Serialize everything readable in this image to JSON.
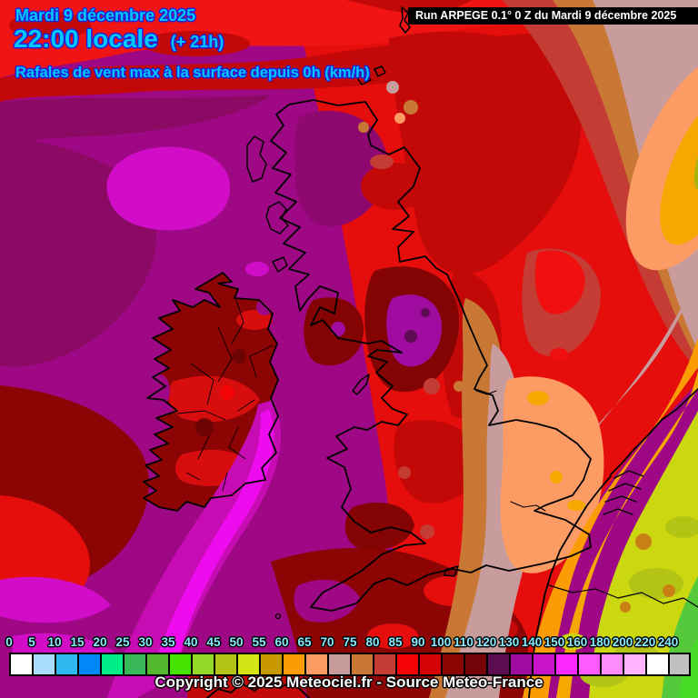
{
  "header": {
    "date": "Mardi 9 décembre 2025",
    "time": "22:00 locale",
    "offset": "(+ 21h)",
    "subtitle": "Rafales de vent max à la surface depuis 0h (km/h)"
  },
  "run_banner": {
    "text": "Run ARPEGE 0.1° 0 Z du Mardi 9 décembre 2025"
  },
  "legend": {
    "unit": "km/h",
    "tick_labels": [
      "0",
      "5",
      "10",
      "15",
      "20",
      "25",
      "30",
      "35",
      "40",
      "45",
      "50",
      "55",
      "60",
      "65",
      "70",
      "75",
      "80",
      "85",
      "90",
      "100",
      "110",
      "120",
      "130",
      "140",
      "150",
      "160",
      "180",
      "200",
      "220",
      "240"
    ],
    "swatch_colors": [
      "#FFFFFF",
      "#A8DCF8",
      "#30B8F0",
      "#0088F8",
      "#00EE88",
      "#38B858",
      "#54B82C",
      "#44E400",
      "#94D828",
      "#B4C414",
      "#D4E414",
      "#C89A00",
      "#FC9C04",
      "#FC9C64",
      "#C89C9C",
      "#C87834",
      "#C43C34",
      "#F40404",
      "#D40404",
      "#8C0404",
      "#740408",
      "#5C0C50",
      "#A00CA0",
      "#C814C8",
      "#FA28FA",
      "#FF5AFF",
      "#FF8CFF",
      "#FFB4FF",
      "#FFFFFF",
      "#C0C0C0"
    ]
  },
  "footer": {
    "copyright": "Copyright © 2025 Meteociel.fr - Source Meteo-France"
  },
  "colors": {
    "header_text": "#00C8FF",
    "header_outline": "#2020DC",
    "tick_text": "#8AEAFF",
    "banner_bg": "#000000",
    "banner_text": "#FFFFFF",
    "copyright_text": "#FFFFFF"
  }
}
